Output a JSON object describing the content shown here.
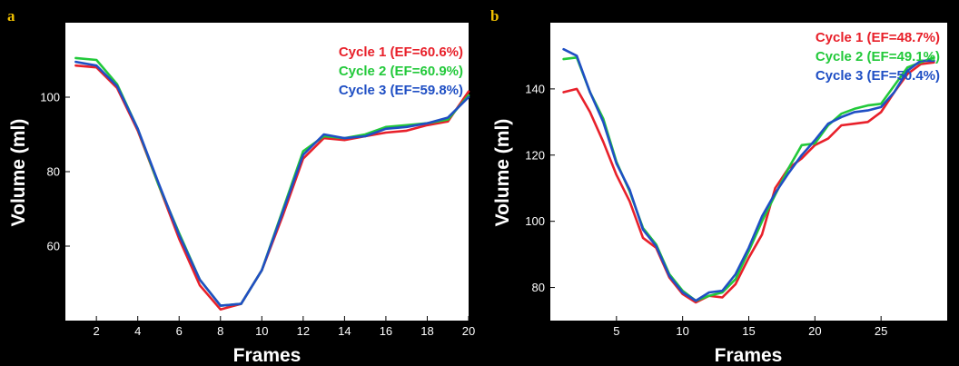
{
  "chart_data": [
    {
      "type": "line",
      "panel_label": "a",
      "xlabel": "Frames",
      "ylabel": "Volume (ml)",
      "xlim": [
        0.5,
        20
      ],
      "ylim": [
        40,
        120
      ],
      "xticks": [
        2,
        4,
        6,
        8,
        10,
        12,
        14,
        16,
        18,
        20
      ],
      "yticks": [
        60,
        80,
        100
      ],
      "legend_position": "top-right",
      "series": [
        {
          "name": "Cycle 1 (EF=60.6%)",
          "color": "#e8202a",
          "x": [
            1,
            2,
            3,
            4,
            5,
            6,
            7,
            8,
            9,
            10,
            11,
            12,
            13,
            14,
            15,
            16,
            17,
            18,
            19,
            20
          ],
          "y": [
            108.5,
            108,
            102.5,
            91,
            76.5,
            62,
            49.5,
            43,
            44.5,
            53.5,
            68,
            83.5,
            89,
            88.5,
            89.5,
            90.5,
            91,
            92.5,
            93.5,
            101.5
          ]
        },
        {
          "name": "Cycle 2 (EF=60.9%)",
          "color": "#22c93a",
          "x": [
            1,
            2,
            3,
            4,
            5,
            6,
            7,
            8,
            9,
            10,
            11,
            12,
            13,
            14,
            15,
            16,
            17,
            18,
            19,
            20
          ],
          "y": [
            110.5,
            110,
            103.5,
            91.5,
            76.5,
            63.5,
            51,
            44,
            44.5,
            53.5,
            69.5,
            85.5,
            89.5,
            89,
            90,
            92,
            92.5,
            93,
            94,
            100.5
          ]
        },
        {
          "name": "Cycle 3 (EF=59.8%)",
          "color": "#1f4fc4",
          "x": [
            1,
            2,
            3,
            4,
            5,
            6,
            7,
            8,
            9,
            10,
            11,
            12,
            13,
            14,
            15,
            16,
            17,
            18,
            19,
            20
          ],
          "y": [
            109.5,
            108.5,
            103,
            91.5,
            77,
            63,
            51,
            44,
            44.5,
            53.5,
            69,
            84.5,
            90,
            89,
            89.5,
            91.5,
            92,
            93,
            94.5,
            100
          ]
        }
      ]
    },
    {
      "type": "line",
      "panel_label": "b",
      "xlabel": "Frames",
      "ylabel": "Volume (ml)",
      "xlim": [
        0,
        30
      ],
      "ylim": [
        70,
        160
      ],
      "xticks": [
        5,
        10,
        15,
        20,
        25
      ],
      "yticks": [
        80,
        100,
        120,
        140
      ],
      "legend_position": "top-right",
      "series": [
        {
          "name": "Cycle 1 (EF=48.7%)",
          "color": "#e8202a",
          "x": [
            1,
            2,
            3,
            4,
            5,
            6,
            7,
            8,
            9,
            10,
            11,
            12,
            13,
            14,
            15,
            16,
            17,
            18,
            19,
            20,
            21,
            22,
            23,
            24,
            25,
            26,
            27,
            28,
            29
          ],
          "y": [
            139,
            140,
            133,
            124,
            114,
            106,
            95,
            92,
            83,
            78,
            75.5,
            77.5,
            77,
            81,
            89,
            96,
            110,
            116,
            119,
            123,
            125,
            129,
            129.5,
            130,
            133,
            139,
            144.5,
            147.5,
            148
          ]
        },
        {
          "name": "Cycle 2 (EF=49.1%)",
          "color": "#22c93a",
          "x": [
            1,
            2,
            3,
            4,
            5,
            6,
            7,
            8,
            9,
            10,
            11,
            12,
            13,
            14,
            15,
            16,
            17,
            18,
            19,
            20,
            21,
            22,
            23,
            24,
            25,
            26,
            27,
            28,
            29
          ],
          "y": [
            149,
            149.5,
            139,
            131,
            118,
            109,
            98,
            93,
            84,
            79,
            76,
            77.5,
            78.5,
            82.5,
            91,
            100,
            108,
            116,
            123,
            123.5,
            129,
            132.5,
            134,
            135,
            135.5,
            141,
            146.5,
            148,
            149.5
          ]
        },
        {
          "name": "Cycle 3 (EF=50.4%)",
          "color": "#1f4fc4",
          "x": [
            1,
            2,
            3,
            4,
            5,
            6,
            7,
            8,
            9,
            10,
            11,
            12,
            13,
            14,
            15,
            16,
            17,
            18,
            19,
            20,
            21,
            22,
            23,
            24,
            25,
            26,
            27,
            28,
            29
          ],
          "y": [
            152,
            150,
            139,
            130,
            117.5,
            109.5,
            97.5,
            92.5,
            83.5,
            78.5,
            76,
            78.5,
            79,
            84,
            92,
            101.5,
            108.5,
            114.5,
            120,
            124.5,
            129.5,
            131.5,
            133,
            133.5,
            134.5,
            139,
            145.5,
            148.5,
            148.5
          ]
        }
      ]
    }
  ]
}
